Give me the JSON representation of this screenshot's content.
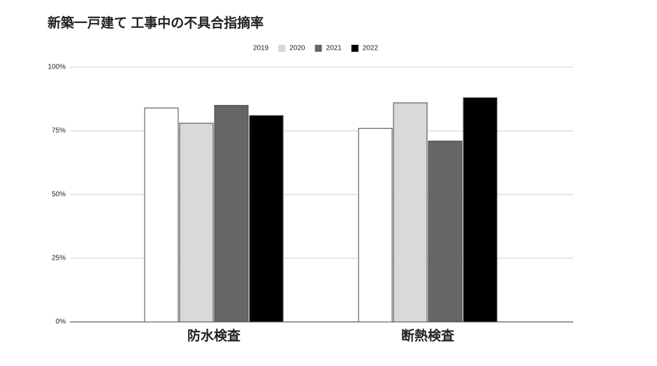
{
  "chart_data": {
    "type": "bar",
    "title": "新築一戸建て 工事中の不具合指摘率",
    "categories": [
      "防水検査",
      "断熱検査"
    ],
    "series": [
      {
        "name": "2019",
        "color": "#ffffff",
        "values": [
          84,
          76
        ]
      },
      {
        "name": "2020",
        "color": "#d9d9d9",
        "values": [
          78,
          86
        ]
      },
      {
        "name": "2021",
        "color": "#666666",
        "values": [
          85,
          71
        ]
      },
      {
        "name": "2022",
        "color": "#000000",
        "values": [
          81,
          88
        ]
      }
    ],
    "ylim": [
      0,
      100
    ],
    "yticks": [
      {
        "value": 0,
        "label": "0%"
      },
      {
        "value": 25,
        "label": "25%"
      },
      {
        "value": 50,
        "label": "50%"
      },
      {
        "value": 75,
        "label": "75%"
      },
      {
        "value": 100,
        "label": "100%"
      }
    ],
    "grid": true,
    "legend": "top"
  }
}
